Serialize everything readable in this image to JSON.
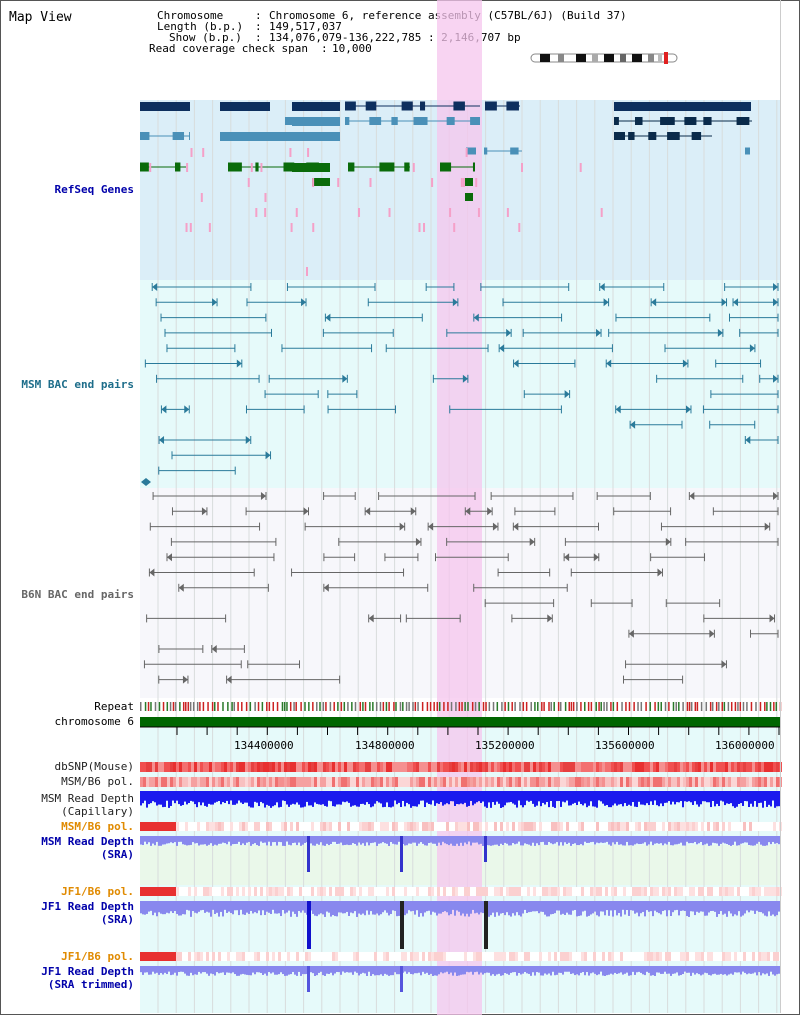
{
  "page": {
    "title": "Map View"
  },
  "info": {
    "chromosome_label": "Chromosome",
    "chromosome_value": "Chromosome 6, reference assembly (C57BL/6J) (Build 37)",
    "length_label": "Length (b.p.)",
    "length_value": "149,517,037",
    "show_label": "Show (b.p.)",
    "show_value": "134,076,079-136,222,785 : 2,146,707 bp",
    "coverage_label": "Read coverage check span",
    "coverage_value": "10,000"
  },
  "tracks": {
    "refseq": "RefSeq Genes",
    "msm_bac": "MSM BAC end pairs",
    "b6n_bac": "B6N BAC end pairs",
    "repeat": "Repeat",
    "chromosome": "chromosome 6",
    "dbsnp": "dbSNP(Mouse)",
    "msm_b6_pol_cap": "MSM/B6 pol.",
    "msm_depth_cap_1": "MSM Read Depth",
    "msm_depth_cap_2": "(Capillary)",
    "msm_b6_pol_sra": "MSM/B6 pol.",
    "msm_depth_sra_1": "MSM Read Depth",
    "msm_depth_sra_2": "(SRA)",
    "jf1_b6_pol_1": "JF1/B6 pol.",
    "jf1_depth_sra_1": "JF1 Read Depth",
    "jf1_depth_sra_2": "(SRA)",
    "jf1_b6_pol_2": "JF1/B6 pol.",
    "jf1_depth_trim_1": "JF1 Read Depth",
    "jf1_depth_trim_2": "(SRA trimmed)"
  },
  "axis": {
    "ticks": [
      "134400000",
      "134800000",
      "135200000",
      "135600000",
      "136000000"
    ]
  },
  "colors": {
    "refseq_dark": "#0d2f5e",
    "refseq_mid": "#4a90b8",
    "refseq_green": "#0a6b0a",
    "refseq_bg": "#dbeef8",
    "msm_bac": "#2a7a9a",
    "msm_bg": "#e6fafa",
    "b6n_bac": "#666666",
    "b6n_bg": "#f7f7fb",
    "highlight": "#f6c6ee",
    "chromosome": "#006600",
    "depth_cap": "#1a1aee",
    "depth_sra": "#8888ee",
    "label_blue": "#0000aa",
    "label_orange": "#e08a00",
    "label_teal": "#1d6d8a"
  }
}
